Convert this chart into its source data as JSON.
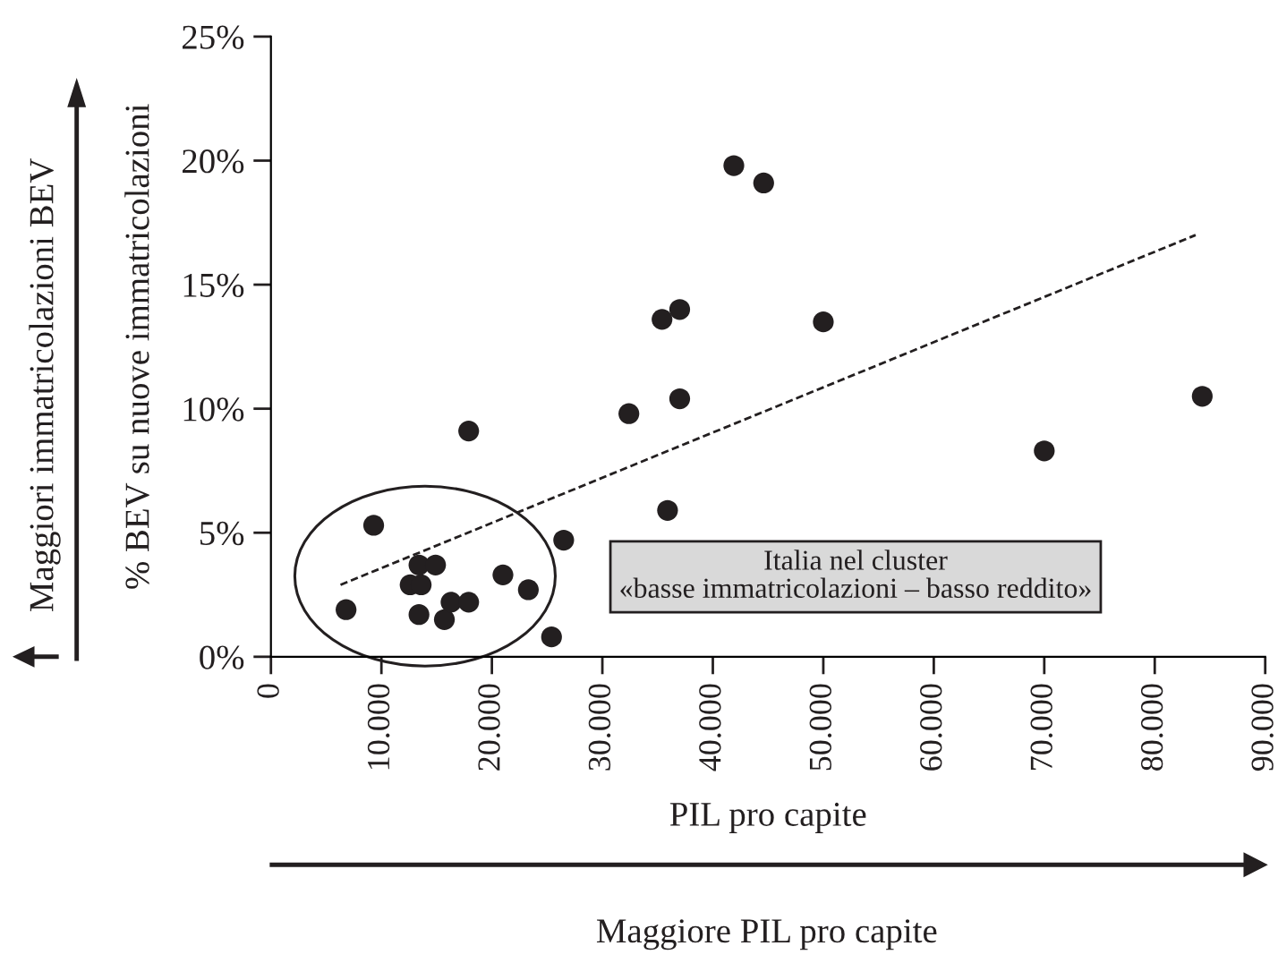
{
  "chart_data": {
    "type": "scatter",
    "xlabel": "PIL pro capite",
    "ylabel": "% BEV su nuove immatricolazioni",
    "annotations": [
      "Italia nel cluster\n«basse immatricolazioni – basso reddito»",
      "Maggiori immatricolazioni BEV",
      "Maggiore PIL pro capite"
    ],
    "series": [
      {
        "color": "#231f20",
        "marker": "circle",
        "x": [
          6800,
          9300,
          13400,
          14900,
          12600,
          13600,
          13400,
          15700,
          16300,
          17900,
          21000,
          23300,
          26500,
          25400,
          41900,
          44600,
          35400,
          37000,
          50000,
          32400,
          37000,
          35900,
          17900,
          70000,
          84300
        ],
        "values": [
          1.9,
          5.3,
          3.7,
          3.7,
          2.9,
          2.9,
          1.7,
          1.5,
          2.2,
          2.2,
          3.3,
          2.7,
          4.7,
          0.8,
          19.8,
          19.1,
          13.6,
          14.0,
          13.5,
          9.8,
          10.4,
          5.9,
          9.1,
          8.3,
          10.5
        ]
      },
      {
        "type": "line",
        "color": "#231f20",
        "line_style": "dashed",
        "x": [
          6300,
          83700
        ],
        "values": [
          2.9,
          17.0
        ]
      }
    ],
    "xlim": [
      0,
      90000
    ],
    "ylim": [
      0,
      25
    ],
    "xticks": [
      0,
      {
        "value": 10000,
        "label": "10.000"
      },
      {
        "value": 20000,
        "label": "20.000"
      },
      {
        "value": 30000,
        "label": "30.000"
      },
      {
        "value": 40000,
        "label": "40.000"
      },
      {
        "value": 50000,
        "label": "50.000"
      },
      {
        "value": 60000,
        "label": "60.000"
      },
      {
        "value": 70000,
        "label": "70.000"
      },
      {
        "value": 80000,
        "label": "80.000"
      },
      {
        "value": 90000,
        "label": "90.000"
      }
    ],
    "yticks": [
      {
        "value": 0,
        "label": "0%"
      },
      {
        "value": 5,
        "label": "5%"
      },
      {
        "value": 10,
        "label": "10%"
      },
      {
        "value": 15,
        "label": "15%"
      },
      {
        "value": 20,
        "label": "20%"
      },
      {
        "value": 25,
        "label": "25%"
      }
    ],
    "grid": false,
    "legend": false
  }
}
